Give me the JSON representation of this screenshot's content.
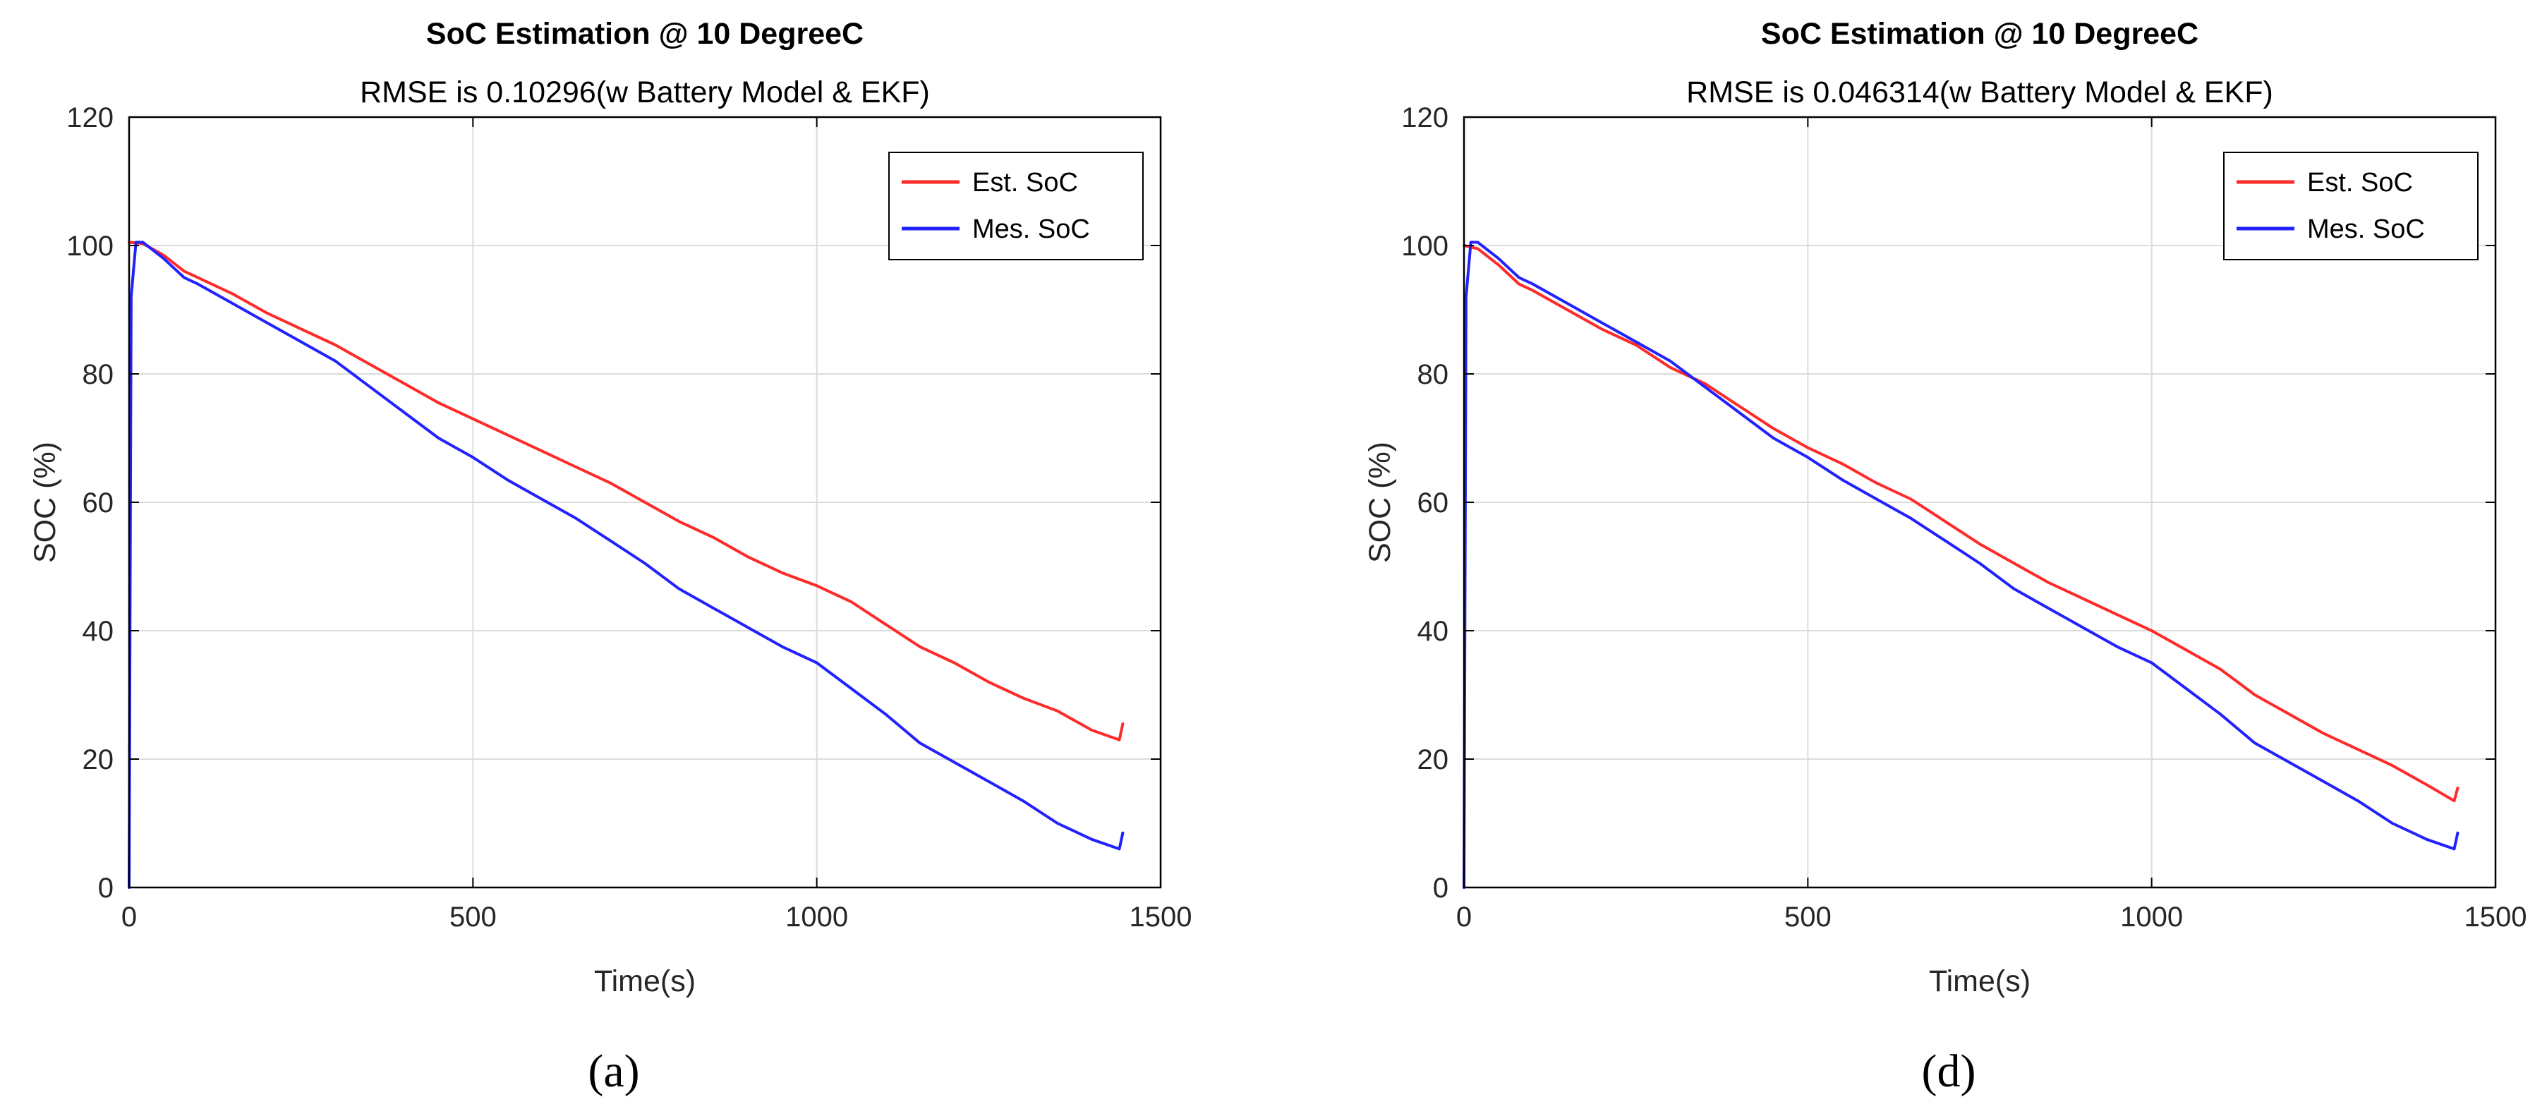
{
  "colors": {
    "est": "#ff2a2a",
    "mes": "#2222ff",
    "axis": "#000000",
    "grid": "#dcdcdc"
  },
  "chart_data": [
    {
      "type": "line",
      "title": "SoC Estimation @ 10 DegreeC",
      "subtitle": "RMSE is 0.10296(w Battery Model & EKF)",
      "xlabel": "Time(s)",
      "ylabel": "SOC (%)",
      "xlim": [
        0,
        1500
      ],
      "ylim": [
        0,
        120
      ],
      "xticks": [
        0,
        500,
        1000,
        1500
      ],
      "yticks": [
        0,
        20,
        40,
        60,
        80,
        100,
        120
      ],
      "grid": true,
      "legend_position": "top-right",
      "caption": "(a)",
      "series": [
        {
          "name": "Est. SoC",
          "color": "#ff2a2a",
          "x": [
            0,
            20,
            50,
            80,
            100,
            150,
            200,
            250,
            300,
            350,
            400,
            450,
            500,
            550,
            600,
            650,
            700,
            750,
            800,
            850,
            900,
            950,
            1000,
            1050,
            1100,
            1150,
            1200,
            1250,
            1300,
            1350,
            1400,
            1440,
            1445
          ],
          "y": [
            100.5,
            100.3,
            98.5,
            96.0,
            95.0,
            92.5,
            89.5,
            87.0,
            84.5,
            81.5,
            78.5,
            75.5,
            73.0,
            70.5,
            68.0,
            65.5,
            63.0,
            60.0,
            57.0,
            54.5,
            51.5,
            49.0,
            47.0,
            44.5,
            41.0,
            37.5,
            35.0,
            32.0,
            29.5,
            27.5,
            24.5,
            23.0,
            25.5
          ]
        },
        {
          "name": "Mes. SoC",
          "color": "#2222ff",
          "x": [
            0,
            3,
            10,
            20,
            50,
            80,
            100,
            150,
            200,
            250,
            300,
            350,
            400,
            450,
            500,
            550,
            600,
            650,
            700,
            750,
            800,
            850,
            900,
            950,
            1000,
            1050,
            1100,
            1150,
            1200,
            1250,
            1300,
            1350,
            1400,
            1440,
            1445
          ],
          "y": [
            0,
            92.0,
            100.5,
            100.5,
            98.0,
            95.0,
            94.0,
            91.0,
            88.0,
            85.0,
            82.0,
            78.0,
            74.0,
            70.0,
            67.0,
            63.5,
            60.5,
            57.5,
            54.0,
            50.5,
            46.5,
            43.5,
            40.5,
            37.5,
            35.0,
            31.0,
            27.0,
            22.5,
            19.5,
            16.5,
            13.5,
            10.0,
            7.5,
            6.0,
            8.5
          ]
        }
      ]
    },
    {
      "type": "line",
      "title": "SoC Estimation @ 10 DegreeC",
      "subtitle": "RMSE is 0.046314(w Battery Model & EKF)",
      "xlabel": "Time(s)",
      "ylabel": "SOC (%)",
      "xlim": [
        0,
        1500
      ],
      "ylim": [
        0,
        120
      ],
      "xticks": [
        0,
        500,
        1000,
        1500
      ],
      "yticks": [
        0,
        20,
        40,
        60,
        80,
        100,
        120
      ],
      "grid": true,
      "legend_position": "top-right",
      "caption": "(d)",
      "series": [
        {
          "name": "Est. SoC",
          "color": "#ff2a2a",
          "x": [
            0,
            20,
            50,
            80,
            100,
            150,
            200,
            250,
            300,
            350,
            400,
            450,
            500,
            550,
            600,
            650,
            700,
            750,
            800,
            850,
            900,
            950,
            1000,
            1050,
            1100,
            1150,
            1200,
            1250,
            1300,
            1350,
            1400,
            1440,
            1445
          ],
          "y": [
            100.0,
            99.5,
            97.0,
            94.0,
            93.0,
            90.0,
            87.0,
            84.5,
            81.0,
            78.5,
            75.0,
            71.5,
            68.5,
            66.0,
            63.0,
            60.5,
            57.0,
            53.5,
            50.5,
            47.5,
            45.0,
            42.5,
            40.0,
            37.0,
            34.0,
            30.0,
            27.0,
            24.0,
            21.5,
            19.0,
            16.0,
            13.5,
            15.5
          ]
        },
        {
          "name": "Mes. SoC",
          "color": "#2222ff",
          "x": [
            0,
            3,
            10,
            20,
            50,
            80,
            100,
            150,
            200,
            250,
            300,
            350,
            400,
            450,
            500,
            550,
            600,
            650,
            700,
            750,
            800,
            850,
            900,
            950,
            1000,
            1050,
            1100,
            1150,
            1200,
            1250,
            1300,
            1350,
            1400,
            1440,
            1445
          ],
          "y": [
            0,
            92.0,
            100.5,
            100.5,
            98.0,
            95.0,
            94.0,
            91.0,
            88.0,
            85.0,
            82.0,
            78.0,
            74.0,
            70.0,
            67.0,
            63.5,
            60.5,
            57.5,
            54.0,
            50.5,
            46.5,
            43.5,
            40.5,
            37.5,
            35.0,
            31.0,
            27.0,
            22.5,
            19.5,
            16.5,
            13.5,
            10.0,
            7.5,
            6.0,
            8.5
          ]
        }
      ]
    }
  ]
}
